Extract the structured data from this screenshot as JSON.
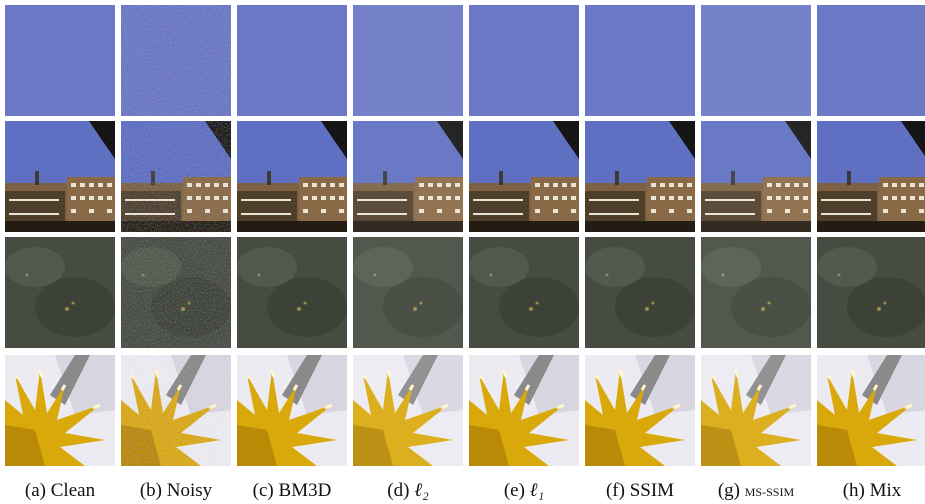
{
  "figure": {
    "captions": [
      {
        "label": "(a)",
        "text": "Clean"
      },
      {
        "label": "(b)",
        "text": "Noisy"
      },
      {
        "label": "(c)",
        "text": "BM3D"
      },
      {
        "label": "(d)",
        "text": "ℓ₂"
      },
      {
        "label": "(e)",
        "text": "ℓ₁"
      },
      {
        "label": "(f)",
        "text": "SSIM"
      },
      {
        "label": "(g)",
        "text": "MS-SSIM"
      },
      {
        "label": "(h)",
        "text": "Mix"
      }
    ]
  }
}
